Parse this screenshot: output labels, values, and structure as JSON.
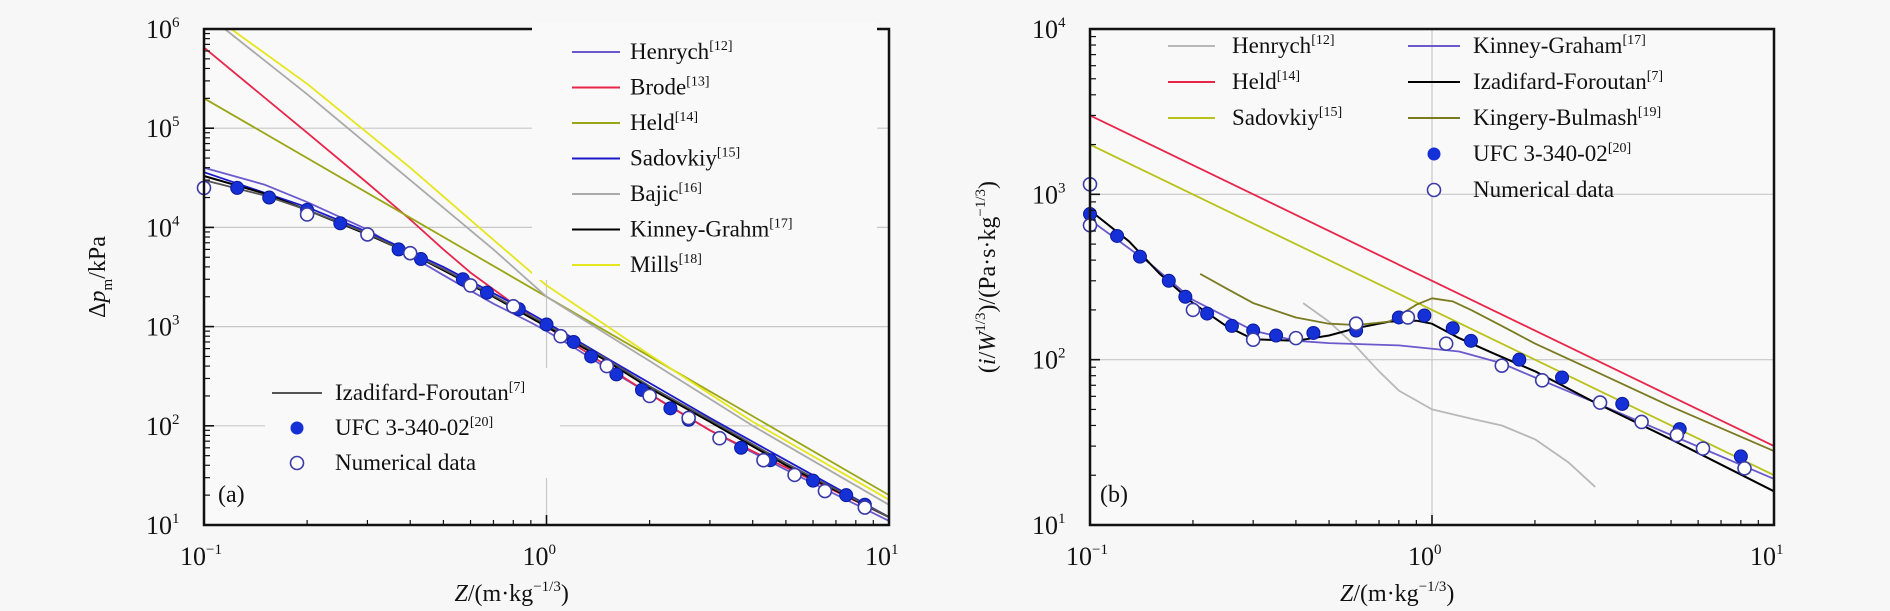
{
  "chart_data": [
    {
      "type": "line",
      "panel_label": "(a)",
      "xscale": "log",
      "yscale": "log",
      "xlim": [
        0.1,
        10
      ],
      "ylim": [
        10,
        1000000
      ],
      "xlabel": "Z/(m·kg^−1/3)",
      "xlabel_parts": {
        "var": "Z",
        "unit": "/(m·kg",
        "exp": "−1/3",
        "close": ")"
      },
      "ylabel": "Δp_m/kPa",
      "ylabel_parts": {
        "pre": "Δ",
        "var": "p",
        "sub": "m",
        "unit": "/kPa"
      },
      "xticks": [
        {
          "base": "10",
          "exp": "−1",
          "value": 0.1
        },
        {
          "base": "10",
          "exp": "0",
          "value": 1
        },
        {
          "base": "10",
          "exp": "1",
          "value": 10
        }
      ],
      "yticks": [
        {
          "base": "10",
          "exp": "1",
          "value": 10
        },
        {
          "base": "10",
          "exp": "2",
          "value": 100
        },
        {
          "base": "10",
          "exp": "3",
          "value": 1000
        },
        {
          "base": "10",
          "exp": "4",
          "value": 10000
        },
        {
          "base": "10",
          "exp": "5",
          "value": 100000
        },
        {
          "base": "10",
          "exp": "6",
          "value": 1000000
        }
      ],
      "grid": true,
      "legends": [
        {
          "placement": "top-right",
          "entries": [
            "Henrych",
            "Brode",
            "Held",
            "Sadovkiy",
            "Bajic",
            "Kinney-Grahm",
            "Mills"
          ]
        },
        {
          "placement": "bottom-left",
          "entries": [
            "Izadifard-Foroutan",
            "UFC 3-340-02",
            "Numerical data"
          ]
        }
      ],
      "series": [
        {
          "name": "Henrych",
          "ref": "[12]",
          "color": "#6a5acd",
          "kind": "line",
          "x": [
            0.1,
            0.15,
            0.2,
            0.3,
            0.4,
            0.5,
            0.7,
            0.9,
            1.0,
            1.2,
            1.5,
            2,
            3,
            5,
            10
          ],
          "y": [
            40000,
            27000,
            18000,
            9500,
            5200,
            3300,
            1700,
            1100,
            900,
            620,
            380,
            210,
            90,
            36,
            11
          ]
        },
        {
          "name": "Brode",
          "ref": "[13]",
          "color": "#e8254a",
          "kind": "line",
          "x": [
            0.1,
            0.2,
            0.3,
            0.4,
            0.5,
            0.6,
            0.8,
            1.0,
            1.3,
            1.7,
            2.2,
            3,
            5,
            10
          ],
          "y": [
            650000,
            90000,
            28000,
            12000,
            6000,
            3500,
            1700,
            1000,
            560,
            300,
            170,
            90,
            38,
            12
          ]
        },
        {
          "name": "Held",
          "ref": "[14]",
          "color": "#9aa616",
          "kind": "line",
          "x": [
            0.1,
            10
          ],
          "y": [
            200000,
            20
          ]
        },
        {
          "name": "Sadovkiy",
          "ref": "[15]",
          "color": "#1a1acd",
          "kind": "line",
          "x": [
            0.1,
            0.2,
            0.3,
            0.5,
            0.8,
            1.0,
            1.5,
            2,
            3,
            5,
            10
          ],
          "y": [
            36000,
            16000,
            9000,
            4000,
            1700,
            1100,
            480,
            270,
            120,
            45,
            12
          ]
        },
        {
          "name": "Bajic",
          "ref": "[16]",
          "color": "#aaaaaa",
          "kind": "line",
          "x": [
            0.115,
            0.2,
            0.4,
            0.7,
            1.0,
            2,
            4,
            10
          ],
          "y": [
            1000000,
            220000,
            30000,
            6000,
            2000,
            450,
            100,
            16
          ]
        },
        {
          "name": "Kinney-Grahm",
          "ref": "[17]",
          "color": "#000000",
          "kind": "line",
          "x": [
            0.1,
            0.15,
            0.2,
            0.3,
            0.4,
            0.5,
            0.7,
            1.0,
            1.5,
            2,
            3,
            5,
            10
          ],
          "y": [
            33000,
            22000,
            15000,
            8500,
            5500,
            3700,
            2000,
            1000,
            450,
            240,
            110,
            40,
            12
          ]
        },
        {
          "name": "Mills",
          "ref": "[18]",
          "color": "#e6e61e",
          "kind": "line",
          "x": [
            0.12,
            0.2,
            0.4,
            0.7,
            1.0,
            2,
            4,
            10
          ],
          "y": [
            1000000,
            280000,
            40000,
            7500,
            2600,
            520,
            110,
            18
          ]
        },
        {
          "name": "Izadifard-Foroutan",
          "ref": "[7]",
          "color": "#555555",
          "kind": "line",
          "x": [
            0.1,
            0.15,
            0.2,
            0.3,
            0.5,
            0.7,
            1.0,
            1.5,
            2,
            3,
            5,
            10
          ],
          "y": [
            30000,
            21000,
            15000,
            8700,
            3800,
            2050,
            1050,
            470,
            250,
            115,
            42,
            12
          ]
        },
        {
          "name": "UFC 3-340-02",
          "ref": "[20]",
          "color": "#1530d6",
          "kind": "filled-marker",
          "x": [
            0.125,
            0.155,
            0.2,
            0.25,
            0.37,
            0.43,
            0.57,
            0.67,
            0.83,
            1.0,
            1.2,
            1.35,
            1.6,
            1.9,
            2.3,
            2.6,
            3.7,
            4.5,
            6.0,
            7.5,
            8.5
          ],
          "y": [
            25000,
            20000,
            15000,
            11000,
            6000,
            4800,
            3000,
            2200,
            1500,
            1050,
            700,
            500,
            330,
            230,
            150,
            115,
            60,
            45,
            28,
            20,
            16
          ]
        },
        {
          "name": "Numerical data",
          "ref": "",
          "color": "#3a3aa8",
          "kind": "open-marker",
          "x": [
            0.1,
            0.2,
            0.3,
            0.4,
            0.6,
            0.8,
            1.1,
            1.5,
            2.0,
            2.6,
            3.2,
            4.3,
            5.3,
            6.5,
            8.5
          ],
          "y": [
            25000,
            13500,
            8500,
            5500,
            2600,
            1600,
            800,
            400,
            200,
            120,
            75,
            45,
            32,
            22,
            15
          ]
        }
      ]
    },
    {
      "type": "line",
      "panel_label": "(b)",
      "xscale": "log",
      "yscale": "log",
      "xlim": [
        0.1,
        10
      ],
      "ylim": [
        10,
        10000
      ],
      "xlabel": "Z/(m·kg^−1/3)",
      "xlabel_parts": {
        "var": "Z",
        "unit": "/(m·kg",
        "exp": "−1/3",
        "close": ")"
      },
      "ylabel": "(i/W^1/3)/(Pa·s·kg^−1/3)",
      "ylabel_parts": {
        "open": "(",
        "var1": "i",
        "slash": "/",
        "var2": "W",
        "exp1": "1/3",
        "mid": ")/(Pa·s·kg",
        "exp2": "−1/3",
        "close": ")"
      },
      "xticks": [
        {
          "base": "10",
          "exp": "−1",
          "value": 0.1
        },
        {
          "base": "10",
          "exp": "0",
          "value": 1
        },
        {
          "base": "10",
          "exp": "1",
          "value": 10
        }
      ],
      "yticks": [
        {
          "base": "10",
          "exp": "1",
          "value": 10
        },
        {
          "base": "10",
          "exp": "2",
          "value": 100
        },
        {
          "base": "10",
          "exp": "3",
          "value": 1000
        },
        {
          "base": "10",
          "exp": "4",
          "value": 10000
        }
      ],
      "grid": true,
      "legends": [
        {
          "placement": "top-center",
          "entries": [
            "Henrych",
            "Held",
            "Sadovkiy",
            "Kinney-Graham",
            "Izadifard-Foroutan",
            "Kingery-Bulmash",
            "UFC 3-340-02",
            "Numerical data"
          ]
        }
      ],
      "series": [
        {
          "name": "Henrych",
          "ref": "[12]",
          "color": "#b8b8b8",
          "kind": "line",
          "x": [
            0.42,
            0.5,
            0.6,
            0.7,
            0.8,
            1.0,
            1.3,
            1.6,
            2.0,
            2.5,
            3.0
          ],
          "y": [
            220,
            170,
            120,
            85,
            65,
            50,
            44,
            40,
            33,
            24,
            17
          ]
        },
        {
          "name": "Held",
          "ref": "[14]",
          "color": "#e8254a",
          "kind": "line",
          "x": [
            0.1,
            10
          ],
          "y": [
            3000,
            30
          ]
        },
        {
          "name": "Sadovkiy",
          "ref": "[15]",
          "color": "#b8c21a",
          "kind": "line",
          "x": [
            0.1,
            10
          ],
          "y": [
            2000,
            20
          ]
        },
        {
          "name": "Kinney-Graham",
          "ref": "[17]",
          "color": "#6a5acd",
          "kind": "line",
          "x": [
            0.1,
            0.15,
            0.2,
            0.3,
            0.4,
            0.5,
            0.8,
            1.2,
            1.6,
            2,
            3,
            5,
            10
          ],
          "y": [
            700,
            380,
            230,
            150,
            130,
            126,
            122,
            112,
            95,
            78,
            55,
            35,
            19
          ]
        },
        {
          "name": "Izadifard-Foroutan",
          "ref": "[7]",
          "color": "#000000",
          "kind": "line",
          "x": [
            0.1,
            0.13,
            0.16,
            0.2,
            0.25,
            0.3,
            0.4,
            0.5,
            0.6,
            0.75,
            0.9,
            1.0,
            1.2,
            1.5,
            2,
            3,
            5,
            10
          ],
          "y": [
            800,
            520,
            330,
            220,
            160,
            133,
            130,
            140,
            155,
            170,
            172,
            165,
            135,
            110,
            85,
            55,
            33,
            16
          ]
        },
        {
          "name": "Kingery-Bulmash",
          "ref": "[19]",
          "color": "#7a7a20",
          "kind": "line",
          "x": [
            0.21,
            0.25,
            0.3,
            0.4,
            0.5,
            0.6,
            0.75,
            0.9,
            1.0,
            1.15,
            1.3,
            1.6,
            2,
            3,
            5,
            10
          ],
          "y": [
            330,
            270,
            220,
            180,
            165,
            162,
            170,
            215,
            235,
            225,
            200,
            160,
            125,
            85,
            52,
            28
          ]
        },
        {
          "name": "UFC 3-340-02",
          "ref": "[20]",
          "color": "#1530d6",
          "kind": "filled-marker",
          "x": [
            0.1,
            0.12,
            0.14,
            0.17,
            0.19,
            0.22,
            0.26,
            0.3,
            0.35,
            0.45,
            0.6,
            0.8,
            0.95,
            1.15,
            1.3,
            1.8,
            2.4,
            3.6,
            5.3,
            8.0
          ],
          "y": [
            760,
            560,
            420,
            300,
            240,
            190,
            160,
            150,
            140,
            145,
            150,
            180,
            185,
            155,
            130,
            100,
            78,
            54,
            38,
            26
          ]
        },
        {
          "name": "Numerical data",
          "ref": "",
          "color": "#3a3aa8",
          "kind": "open-marker",
          "x": [
            0.1,
            0.1,
            0.2,
            0.3,
            0.4,
            0.6,
            0.85,
            1.1,
            1.6,
            2.1,
            3.1,
            4.1,
            5.2,
            6.2,
            8.2
          ],
          "y": [
            1150,
            650,
            200,
            132,
            135,
            165,
            180,
            125,
            92,
            75,
            55,
            42,
            35,
            29,
            22
          ]
        }
      ]
    }
  ]
}
